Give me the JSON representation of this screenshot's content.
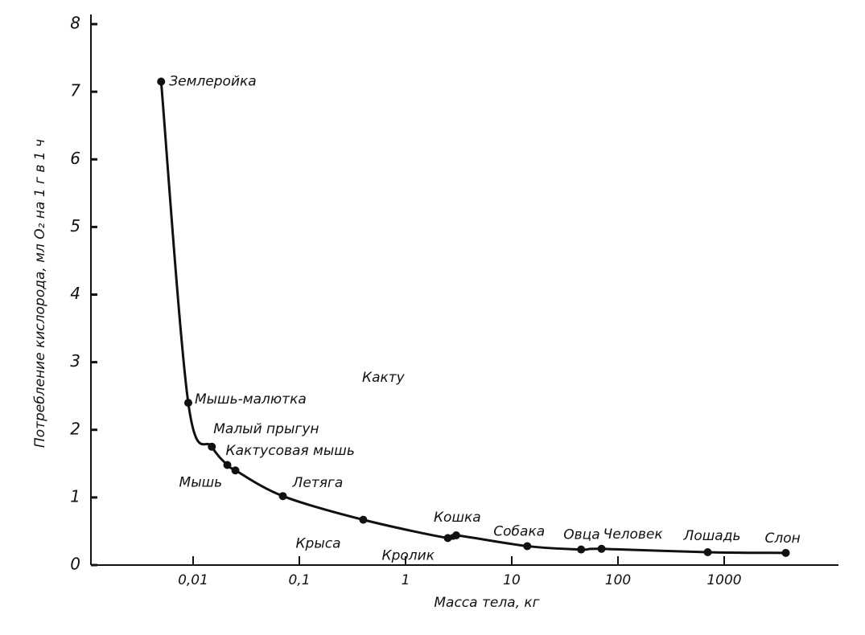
{
  "chart_data": {
    "type": "scatter",
    "y_label": "Потребление кислорода, мл O₂ на 1 г в 1 ч",
    "x_label": "Масса тела, кг",
    "annotations": [
      "Какту"
    ],
    "labels": [
      "Землеройка",
      "Мышь-малютка",
      "Малый прыгун",
      "Мышь",
      "Кактусовая мышь",
      "Летяга",
      "Крыса",
      "Кролик",
      "Кошка",
      "Собака",
      "Овца",
      "Человек",
      "Лошадь",
      "Слон"
    ],
    "x": [
      0.005,
      0.009,
      0.015,
      0.021,
      0.025,
      0.07,
      0.4,
      2.5,
      3,
      14,
      45,
      70,
      700,
      3800
    ],
    "values": [
      7.15,
      2.4,
      1.75,
      1.48,
      1.4,
      1.02,
      0.67,
      0.4,
      0.44,
      0.28,
      0.23,
      0.24,
      0.19,
      0.18
    ],
    "color": "#111111",
    "xscale": "log",
    "xlim": [
      0.001,
      10000
    ],
    "ylim": [
      0,
      8
    ],
    "xticks": [
      {
        "value": 0.01,
        "label": "0,01"
      },
      {
        "value": 0.1,
        "label": "0,1"
      },
      1,
      10,
      100,
      1000
    ],
    "yticks": [
      0,
      1,
      2,
      3,
      4,
      5,
      6,
      7,
      8
    ]
  }
}
